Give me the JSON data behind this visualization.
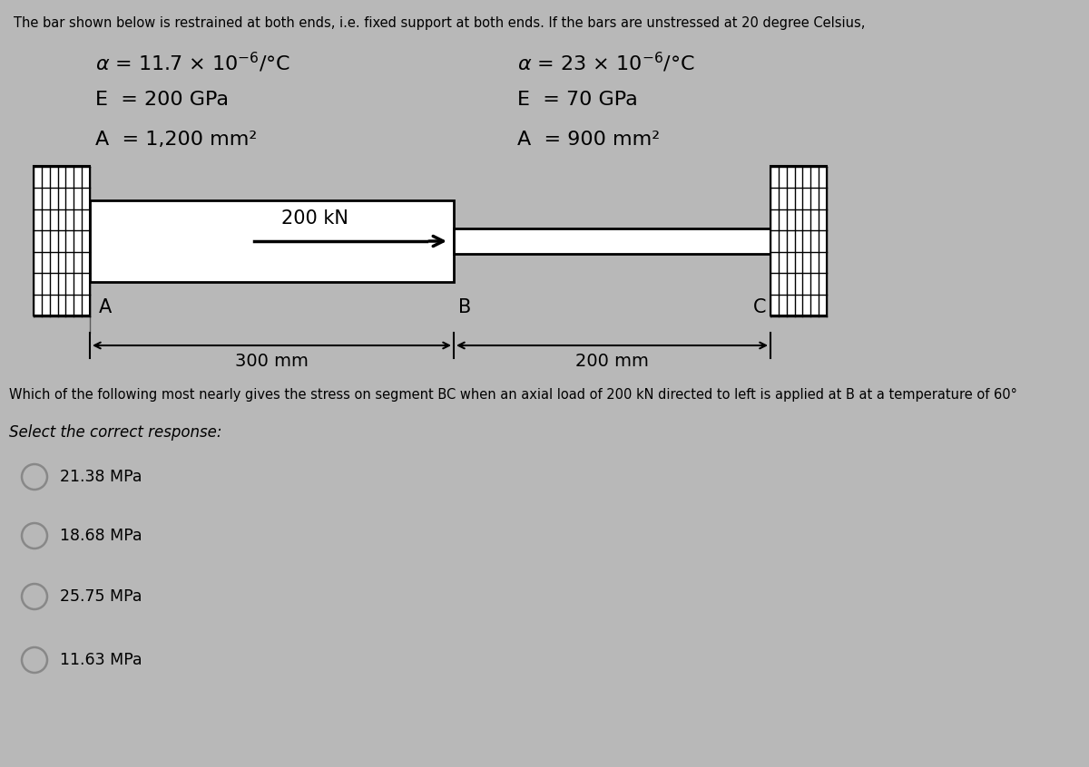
{
  "bg_color": "#b8b8b8",
  "title_text": "The bar shown below is restrained at both ends, i.e. fixed support at both ends. If the bars are unstressed at 20 degree Celsius,",
  "question_text": "Which of the following most nearly gives the stress on segment BC when an axial load of 200 kN directed to left is applied at B at a temperature of 60°",
  "select_text": "Select the correct response:",
  "options": [
    "21.38 MPa",
    "18.68 MPa",
    "25.75 MPa",
    "11.63 MPa"
  ],
  "load_label": "200 kN",
  "dim_left": "300 mm",
  "dim_right": "200 mm",
  "label_A": "A",
  "label_B": "B",
  "label_C": "C",
  "alpha1": "11.7",
  "alpha2": "23",
  "E1": "200",
  "E2": "70",
  "A1": "1,200",
  "A2": "900"
}
